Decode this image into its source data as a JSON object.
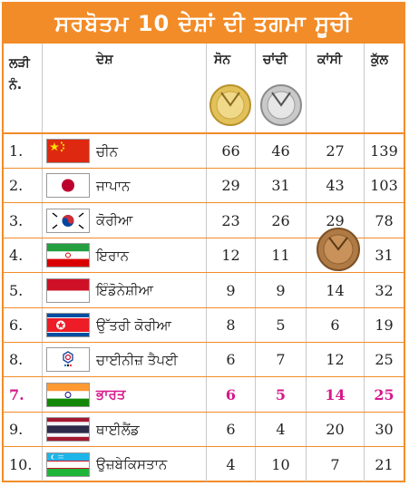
{
  "title": "ਸਰਬੋਤਮ 10 ਦੇਸ਼ਾਂ ਦੀ ਤਗਮਾ ਸੂਚੀ",
  "headers": {
    "rank": "ਲੜੀ ਨੰ.",
    "country": "ਦੇਸ਼",
    "gold": "ਸੋਨ",
    "silver": "ਚਾਂਦੀ",
    "bronze": "ਕਾਂਸੀ",
    "total": "ਕੁੱਲ"
  },
  "rows": [
    {
      "rank": "1.",
      "flag": "china-flag",
      "country": "ਚੀਨ",
      "gold": "66",
      "silver": "46",
      "bronze": "27",
      "total": "139"
    },
    {
      "rank": "2.",
      "flag": "japan-flag",
      "country": "ਜਾਪਾਨ",
      "gold": "29",
      "silver": "31",
      "bronze": "43",
      "total": "103"
    },
    {
      "rank": "3.",
      "flag": "south-korea-flag",
      "country": "ਕੋਰੀਆ",
      "gold": "23",
      "silver": "26",
      "bronze": "29",
      "total": "78"
    },
    {
      "rank": "4.",
      "flag": "iran-flag",
      "country": "ਇਰਾਨ",
      "gold": "12",
      "silver": "11",
      "bronze": "",
      "total": "31"
    },
    {
      "rank": "5.",
      "flag": "indonesia-flag",
      "country": "ਇੰਡੋਨੇਸ਼ੀਆ",
      "gold": "9",
      "silver": "9",
      "bronze": "14",
      "total": "32"
    },
    {
      "rank": "6.",
      "flag": "north-korea-flag",
      "country": "ਉੱਤਰੀ ਕੋਰੀਆ",
      "gold": "8",
      "silver": "5",
      "bronze": "6",
      "total": "19"
    },
    {
      "rank": "8.",
      "flag": "chinese-taipei-flag",
      "country": "ਚਾਈਨੀਜ਼ ਤੈਪਈ",
      "gold": "6",
      "silver": "7",
      "bronze": "12",
      "total": "25"
    },
    {
      "rank": "7.",
      "flag": "india-flag",
      "country": "ਭਾਰਤ",
      "gold": "6",
      "silver": "5",
      "bronze": "14",
      "total": "25",
      "highlight": true
    },
    {
      "rank": "9.",
      "flag": "thailand-flag",
      "country": "ਥਾਈਲੈਂਡ",
      "gold": "6",
      "silver": "4",
      "bronze": "20",
      "total": "30"
    },
    {
      "rank": "10.",
      "flag": "uzbekistan-flag",
      "country": "ਉਜ਼ਬੇਕਿਸਤਾਨ",
      "gold": "4",
      "silver": "10",
      "bronze": "7",
      "total": "21"
    }
  ],
  "colors": {
    "accent": "#f28c28",
    "highlight": "#d6198c"
  },
  "icons": {
    "gold": "gold-medal-icon",
    "silver": "silver-medal-icon",
    "bronze": "bronze-medal-icon"
  }
}
